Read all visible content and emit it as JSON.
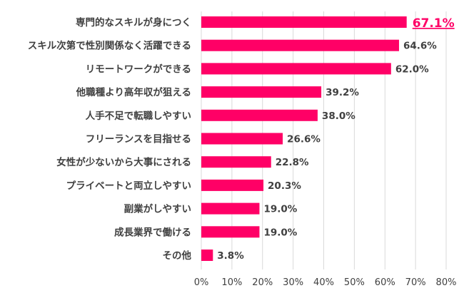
{
  "chart_data": {
    "type": "bar",
    "orientation": "horizontal",
    "categories": [
      "専門的なスキルが身につく",
      "スキル次第で性別関係なく活躍できる",
      "リモートワークができる",
      "他職種より高年収が狙える",
      "人手不足で転職しやすい",
      "フリーランスを目指せる",
      "女性が少ないから大事にされる",
      "プライベートと両立しやすい",
      "副業がしやすい",
      "成長業界で働ける",
      "その他"
    ],
    "values": [
      67.1,
      64.6,
      62.0,
      39.2,
      38.0,
      26.6,
      22.8,
      20.3,
      19.0,
      19.0,
      3.8
    ],
    "data_labels": [
      "67.1%",
      "64.6%",
      "62.0%",
      "39.2%",
      "38.0%",
      "26.6%",
      "22.8%",
      "20.3%",
      "19.0%",
      "19.0%",
      "3.8%"
    ],
    "xlim": [
      0,
      80
    ],
    "x_ticks": [
      "0%",
      "10%",
      "20%",
      "30%",
      "40%",
      "50%",
      "60%",
      "70%",
      "80%"
    ],
    "grid": "vertical",
    "highlight_index": 0,
    "colors": {
      "bar": "#ff0066",
      "highlight_label": "#ff0066",
      "text": "#404040",
      "grid": "#d9d9d9"
    }
  }
}
